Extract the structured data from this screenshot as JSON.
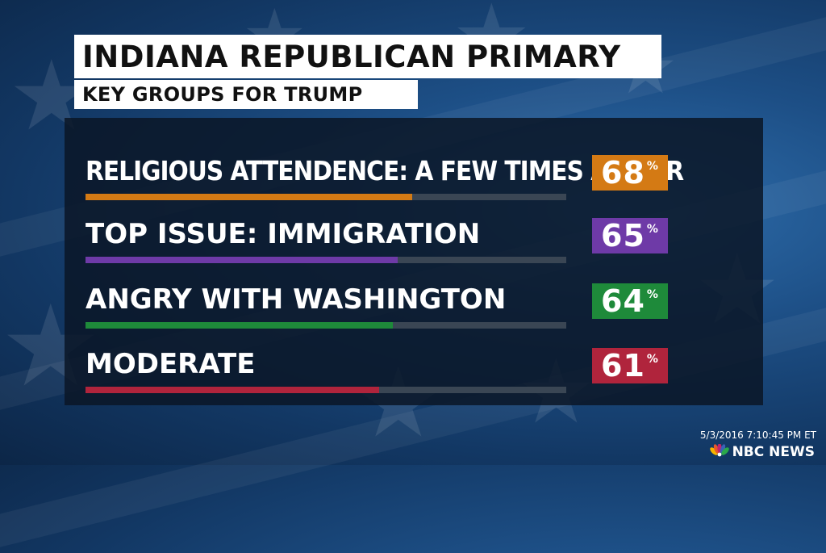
{
  "chart_data": {
    "type": "bar",
    "title": "INDIANA REPUBLICAN PRIMARY",
    "subtitle": "KEY GROUPS FOR TRUMP",
    "categories": [
      "RELIGIOUS ATTENDENCE: A FEW TIMES A YEAR",
      "TOP ISSUE: IMMIGRATION",
      "ANGRY WITH WASHINGTON",
      "MODERATE"
    ],
    "values": [
      68,
      65,
      64,
      61
    ],
    "value_labels": [
      "68",
      "65",
      "64",
      "61"
    ],
    "unit": "%",
    "colors": [
      "#d47a14",
      "#6e3aa7",
      "#1e8a3a",
      "#b0243c"
    ],
    "xlim": [
      0,
      100
    ],
    "grid": false
  },
  "footer": {
    "timestamp": "5/3/2016 7:10:45 PM ET",
    "network": "NBC NEWS",
    "logo_icon": "peacock-icon"
  }
}
